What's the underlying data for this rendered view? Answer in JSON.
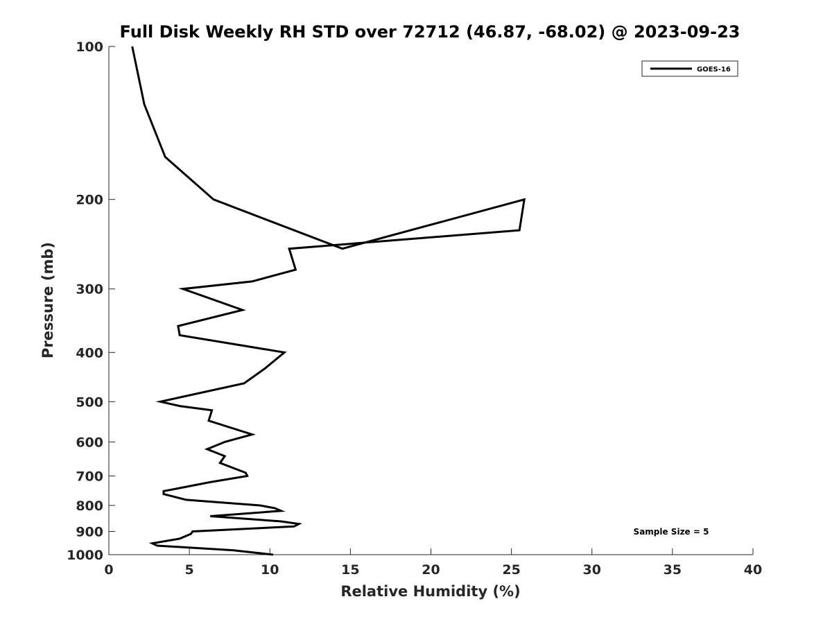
{
  "chart_data": {
    "type": "line",
    "title": "Full Disk Weekly RH STD over 72712 (46.87, -68.02) @ 2023-09-23",
    "xlabel": "Relative Humidity (%)",
    "ylabel": "Pressure (mb)",
    "xlim": [
      0,
      40
    ],
    "ylim": [
      100,
      1000
    ],
    "y_scale": "log",
    "y_reversed": true,
    "x_ticks": [
      "0",
      "5",
      "10",
      "15",
      "20",
      "25",
      "30",
      "35",
      "40"
    ],
    "y_ticks": [
      "100",
      "200",
      "300",
      "400",
      "500",
      "600",
      "700",
      "800",
      "900",
      "1000"
    ],
    "grid": false,
    "legend_position": "top-right",
    "annotation": "Sample Size = 5",
    "series": [
      {
        "name": "GOES-16",
        "color": "#000000",
        "x": [
          1.45,
          2.2,
          3.5,
          6.5,
          14.5,
          25.8,
          25.5,
          11.2,
          11.6,
          8.9,
          4.6,
          8.3,
          4.3,
          4.4,
          10.9,
          9.7,
          8.4,
          3.2,
          4.4,
          6.4,
          6.2,
          8.9,
          7.2,
          6.1,
          7.2,
          6.9,
          8.5,
          8.6,
          6.3,
          3.4,
          3.4,
          4.8,
          9.4,
          10.3,
          10.7,
          6.3,
          10.7,
          11.8,
          11.5,
          5.2,
          5.1,
          4.4,
          2.7,
          3.0,
          7.7,
          10.2
        ],
        "y": [
          100,
          130,
          165,
          200,
          250,
          200,
          230,
          250,
          275,
          290,
          300,
          330,
          355,
          370,
          400,
          430,
          460,
          500,
          510,
          520,
          545,
          580,
          600,
          620,
          640,
          660,
          690,
          700,
          720,
          750,
          760,
          780,
          800,
          810,
          820,
          840,
          860,
          870,
          880,
          900,
          910,
          930,
          950,
          960,
          980,
          1000
        ]
      }
    ]
  }
}
